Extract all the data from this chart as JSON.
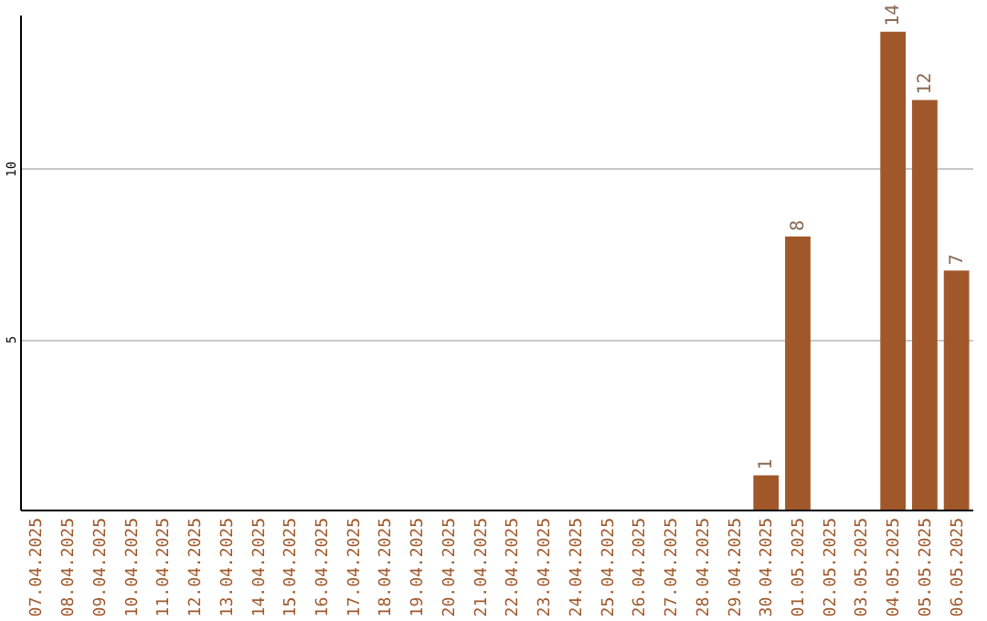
{
  "chart_data": {
    "type": "bar",
    "categories": [
      "07.04.2025",
      "08.04.2025",
      "09.04.2025",
      "10.04.2025",
      "11.04.2025",
      "12.04.2025",
      "13.04.2025",
      "14.04.2025",
      "15.04.2025",
      "16.04.2025",
      "17.04.2025",
      "18.04.2025",
      "19.04.2025",
      "20.04.2025",
      "21.04.2025",
      "22.04.2025",
      "23.04.2025",
      "24.04.2025",
      "25.04.2025",
      "26.04.2025",
      "27.04.2025",
      "28.04.2025",
      "29.04.2025",
      "30.04.2025",
      "01.05.2025",
      "02.05.2025",
      "03.05.2025",
      "04.05.2025",
      "05.05.2025",
      "06.05.2025"
    ],
    "values": [
      0,
      0,
      0,
      0,
      0,
      0,
      0,
      0,
      0,
      0,
      0,
      0,
      0,
      0,
      0,
      0,
      0,
      0,
      0,
      0,
      0,
      0,
      0,
      1,
      8,
      0,
      0,
      14,
      12,
      7
    ],
    "value_labels": [
      null,
      null,
      null,
      null,
      null,
      null,
      null,
      null,
      null,
      null,
      null,
      null,
      null,
      null,
      null,
      null,
      null,
      null,
      null,
      null,
      null,
      null,
      null,
      "1",
      "8",
      null,
      null,
      "14",
      "12",
      "7"
    ],
    "color": "#a0582a",
    "ylim": [
      0,
      14.5
    ],
    "yticks": [
      5,
      10
    ],
    "grid": "y"
  }
}
